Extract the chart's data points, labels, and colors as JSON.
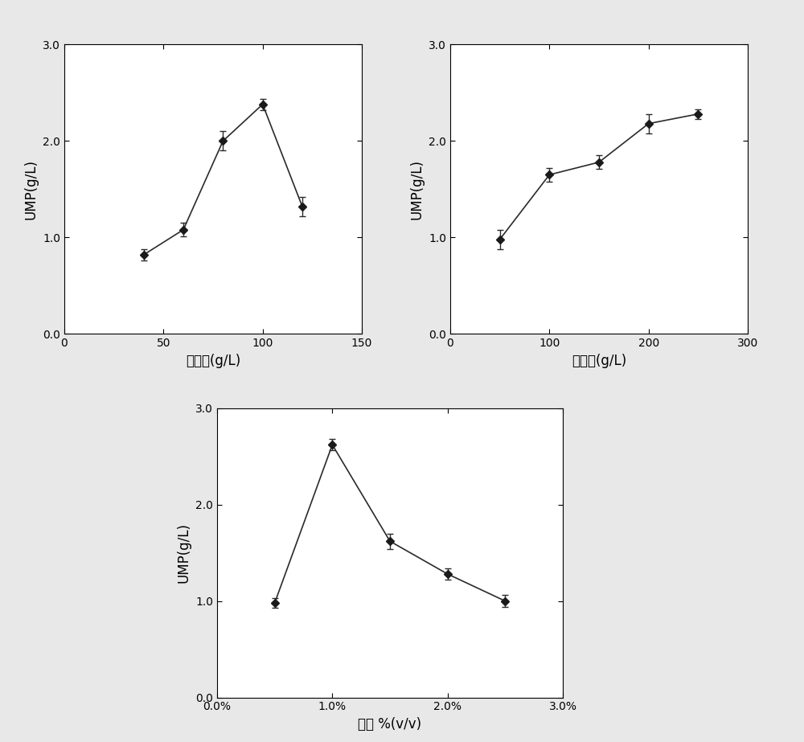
{
  "plot1": {
    "x": [
      40,
      60,
      80,
      100,
      120
    ],
    "y": [
      0.82,
      1.08,
      2.0,
      2.38,
      1.32
    ],
    "yerr": [
      0.06,
      0.07,
      0.1,
      0.06,
      0.1
    ],
    "xlabel": "葡萄糖(g/L)",
    "ylabel": "UMP(g/L)",
    "xlim": [
      0,
      150
    ],
    "xticks": [
      0,
      50,
      100,
      150
    ],
    "ylim": [
      0.0,
      3.0
    ],
    "yticks": [
      0.0,
      1.0,
      2.0,
      3.0
    ]
  },
  "plot2": {
    "x": [
      50,
      100,
      150,
      200,
      250
    ],
    "y": [
      0.98,
      1.65,
      1.78,
      2.18,
      2.28
    ],
    "yerr": [
      0.1,
      0.07,
      0.07,
      0.1,
      0.05
    ],
    "xlabel": "生物量(g/L)",
    "ylabel": "UMP(g/L)",
    "xlim": [
      0,
      300
    ],
    "xticks": [
      0,
      100,
      200,
      300
    ],
    "ylim": [
      0.0,
      3.0
    ],
    "yticks": [
      0.0,
      1.0,
      2.0,
      3.0
    ]
  },
  "plot3": {
    "x": [
      0.005,
      0.01,
      0.015,
      0.02,
      0.025
    ],
    "y": [
      0.98,
      2.62,
      1.62,
      1.28,
      1.0
    ],
    "yerr": [
      0.05,
      0.06,
      0.08,
      0.06,
      0.06
    ],
    "xlabel": "甲苯 %(v/v)",
    "ylabel": "UMP(g/L)",
    "xlim_pct": [
      0.0,
      0.03
    ],
    "xticks_pct": [
      0.0,
      0.01,
      0.02,
      0.03
    ],
    "xticklabels_pct": [
      "0.0%",
      "1.0%",
      "2.0%",
      "3.0%"
    ],
    "ylim": [
      0.0,
      3.0
    ],
    "yticks": [
      0.0,
      1.0,
      2.0,
      3.0
    ]
  },
  "marker": "D",
  "markersize": 5,
  "linecolor": "#2a2a2a",
  "markerfacecolor": "#1a1a1a",
  "markeredgecolor": "#1a1a1a",
  "capsize": 3,
  "elinewidth": 1.0,
  "linewidth": 1.2,
  "bg_color": "#e8e8e8"
}
